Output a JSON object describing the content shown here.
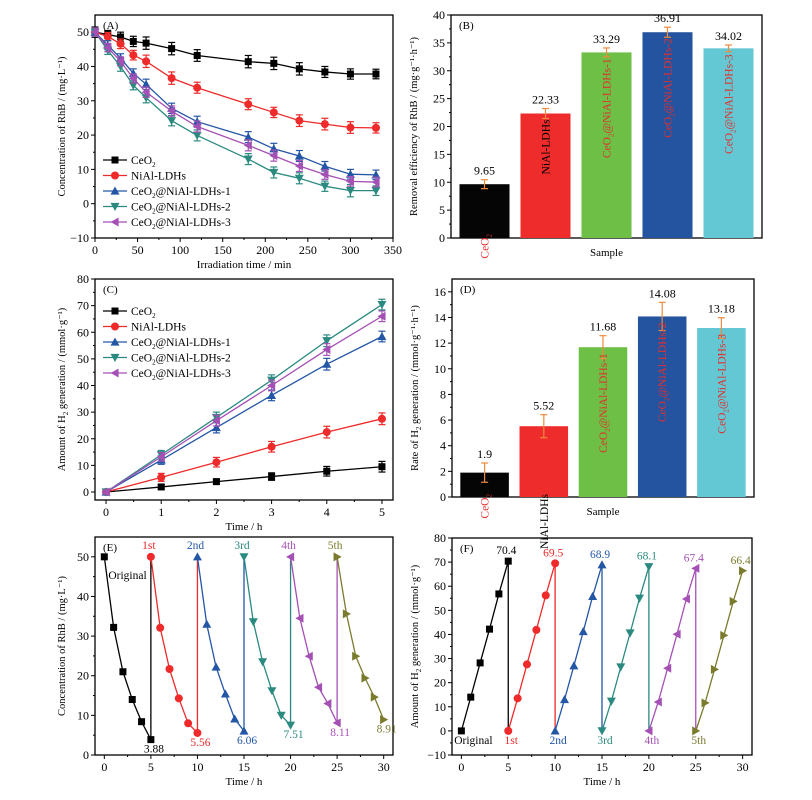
{
  "figure": {
    "panels": [
      "A",
      "B",
      "C",
      "D",
      "E",
      "F"
    ]
  },
  "colors": {
    "black": "#000000",
    "red": "#ee2a2a",
    "blue": "#2456a6",
    "teal": "#2b8a80",
    "purple": "#a550b5",
    "olive": "#7b7b2e",
    "bar_black": "#050505",
    "bar_red": "#ee2c2c",
    "bar_green": "#6dbf45",
    "bar_blue": "#2453a0",
    "bar_cyan": "#63c8d3",
    "error_orange": "#f08a3c",
    "bar_label_red": "#e0312f"
  },
  "chart_data": [
    {
      "id": "A",
      "type": "line",
      "panel_label": "(A)",
      "xlabel": "Irradiation time / min",
      "ylabel": "Concentration of RhB / (mg·L⁻¹)",
      "xlim": [
        0,
        350
      ],
      "ylim": [
        -10,
        55
      ],
      "xticks": [
        0,
        50,
        100,
        150,
        200,
        250,
        300,
        350
      ],
      "yticks": [
        -10,
        0,
        10,
        20,
        30,
        40,
        50
      ],
      "legend_position": "bottom-left",
      "x": [
        0,
        15,
        30,
        45,
        60,
        90,
        120,
        180,
        210,
        240,
        270,
        300,
        330
      ],
      "series": [
        {
          "name": "CeO2",
          "label_main": "CeO",
          "label_sub": "2",
          "label_tail": "",
          "color_key": "black",
          "marker": "square",
          "values": [
            50,
            49.3,
            48.6,
            47.3,
            46.8,
            45.2,
            43.2,
            41.4,
            40.9,
            39.3,
            38.4,
            37.8,
            37.8
          ],
          "error": [
            1.5,
            1.2,
            1.4,
            1.5,
            1.8,
            1.8,
            1.7,
            1.8,
            1.8,
            1.8,
            1.6,
            1.5,
            1.4
          ]
        },
        {
          "name": "NiAl-LDHs",
          "label_main": "NiAl-LDHs",
          "label_sub": "",
          "label_tail": "",
          "color_key": "red",
          "marker": "circle",
          "values": [
            50,
            48.7,
            46.6,
            43.3,
            41.5,
            36.6,
            33.8,
            29.0,
            26.6,
            24.2,
            23.2,
            22.2,
            22.1
          ],
          "error": [
            1.2,
            1.2,
            1.4,
            1.4,
            1.8,
            1.8,
            1.6,
            1.6,
            1.5,
            1.7,
            1.7,
            1.7,
            1.5
          ]
        },
        {
          "name": "CeO2@NiAl-LDHs-1",
          "label_main": "CeO",
          "label_sub": "2",
          "label_tail": "@NiAl-LDHs-1",
          "color_key": "blue",
          "marker": "triangle-up",
          "values": [
            50,
            46.2,
            42.4,
            38.0,
            34.8,
            27.8,
            23.9,
            19.4,
            16.0,
            13.9,
            10.9,
            8.6,
            8.4
          ],
          "error": [
            1.2,
            1.3,
            1.3,
            1.3,
            1.5,
            1.5,
            1.6,
            1.6,
            1.6,
            1.6,
            1.4,
            1.4,
            1.4
          ]
        },
        {
          "name": "CeO2@NiAl-LDHs-2",
          "label_main": "CeO",
          "label_sub": "2",
          "label_tail": "@NiAl-LDHs-2",
          "color_key": "teal",
          "marker": "triangle-down",
          "values": [
            50,
            44.7,
            40.0,
            34.5,
            30.9,
            24.2,
            19.9,
            13.0,
            9.1,
            7.4,
            5.1,
            3.8,
            3.8
          ],
          "error": [
            1.2,
            1.2,
            1.4,
            1.3,
            1.5,
            1.5,
            1.6,
            1.6,
            1.6,
            1.6,
            1.5,
            1.8,
            1.4
          ]
        },
        {
          "name": "CeO2@NiAl-LDHs-3",
          "label_main": "CeO",
          "label_sub": "2",
          "label_tail": "@NiAl-LDHs-3",
          "color_key": "purple",
          "marker": "triangle-left",
          "values": [
            50,
            45.5,
            41.5,
            36.5,
            32.5,
            27.0,
            22.5,
            17.0,
            14.0,
            11.0,
            8.5,
            6.5,
            6.3
          ],
          "error": [
            1.2,
            1.2,
            1.3,
            1.3,
            1.5,
            1.5,
            1.6,
            1.6,
            1.6,
            1.6,
            1.4,
            1.4,
            1.4
          ]
        }
      ]
    },
    {
      "id": "B",
      "type": "bar",
      "panel_label": "(B)",
      "xlabel": "Sample",
      "ylabel": "Removal efficiency of RhB / (mg·g⁻¹·h⁻¹)",
      "ylim": [
        0,
        40
      ],
      "yticks": [
        0,
        5,
        10,
        15,
        20,
        25,
        30,
        35,
        40
      ],
      "categories": [
        "CeO2",
        "NiAl-LDHs",
        "CeO2@NiAl-LDHs-1",
        "CeO2@NiAl-LDHs-2",
        "CeO2@NiAl-LDHs-3"
      ],
      "category_labels": [
        {
          "main": "CeO",
          "sub": "2",
          "tail": "",
          "color_key": "bar_label_red"
        },
        {
          "main": "NiAl-LDHs",
          "sub": "",
          "tail": "",
          "color_key": "black"
        },
        {
          "main": "CeO",
          "sub": "2",
          "tail": "@NiAl-LDHs-1",
          "color_key": "bar_label_red"
        },
        {
          "main": "CeO",
          "sub": "2",
          "tail": "@NiAl-LDHs-2",
          "color_key": "bar_label_red"
        },
        {
          "main": "CeO",
          "sub": "2",
          "tail": "@NiAl-LDHs-3",
          "color_key": "bar_label_red"
        }
      ],
      "values": [
        9.65,
        22.33,
        33.29,
        36.91,
        34.02
      ],
      "value_labels": [
        "9.65",
        "22.33",
        "33.29",
        "36.91",
        "34.02"
      ],
      "error": [
        0.8,
        0.9,
        0.8,
        0.9,
        0.6
      ],
      "bar_color_keys": [
        "bar_black",
        "bar_red",
        "bar_green",
        "bar_blue",
        "bar_cyan"
      ]
    },
    {
      "id": "C",
      "type": "line",
      "panel_label": "(C)",
      "xlabel": "Time / h",
      "ylabel_parts": [
        "Amount of H",
        "2",
        " generation / (mmol·g⁻¹)"
      ],
      "xlim": [
        -0.2,
        5.2
      ],
      "ylim": [
        -3,
        80
      ],
      "xticks": [
        0,
        1,
        2,
        3,
        4,
        5
      ],
      "yticks": [
        0,
        10,
        20,
        30,
        40,
        50,
        60,
        70,
        80
      ],
      "legend_position": "top-left",
      "x": [
        0,
        1,
        2,
        3,
        4,
        5
      ],
      "series": [
        {
          "name": "CeO2",
          "label_main": "CeO",
          "label_sub": "2",
          "label_tail": "",
          "color_key": "black",
          "marker": "square",
          "values": [
            0,
            1.9,
            3.9,
            5.8,
            7.8,
            9.5
          ],
          "error": [
            0.8,
            0.8,
            1.0,
            1.4,
            1.8,
            2.0
          ]
        },
        {
          "name": "NiAl-LDHs",
          "label_main": "NiAl-LDHs",
          "label_sub": "",
          "label_tail": "",
          "color_key": "red",
          "marker": "circle",
          "values": [
            0,
            5.5,
            11.2,
            17.0,
            22.5,
            27.5
          ],
          "error": [
            0.8,
            1.5,
            1.8,
            2.0,
            2.2,
            2.2
          ]
        },
        {
          "name": "CeO2@NiAl-LDHs-1",
          "label_main": "CeO",
          "label_sub": "2",
          "label_tail": "@NiAl-LDHs-1",
          "color_key": "blue",
          "marker": "triangle-up",
          "values": [
            0,
            12.0,
            24.2,
            36.3,
            48.0,
            58.4
          ],
          "error": [
            0.8,
            1.6,
            2.0,
            2.0,
            2.2,
            2.0
          ]
        },
        {
          "name": "CeO2@NiAl-LDHs-2",
          "label_main": "CeO",
          "label_sub": "2",
          "label_tail": "@NiAl-LDHs-2",
          "color_key": "teal",
          "marker": "triangle-down",
          "values": [
            0,
            14.0,
            28.0,
            42.0,
            56.8,
            70.4
          ],
          "error": [
            0.8,
            1.6,
            2.0,
            2.0,
            2.2,
            2.0
          ]
        },
        {
          "name": "CeO2@NiAl-LDHs-3",
          "label_main": "CeO",
          "label_sub": "2",
          "label_tail": "@NiAl-LDHs-3",
          "color_key": "purple",
          "marker": "triangle-left",
          "values": [
            0,
            13.2,
            26.8,
            40.0,
            53.5,
            66.0
          ],
          "error": [
            0.8,
            1.6,
            2.0,
            2.0,
            2.2,
            2.0
          ]
        }
      ]
    },
    {
      "id": "D",
      "type": "bar",
      "panel_label": "(D)",
      "xlabel": "Sample",
      "ylabel_parts": [
        "Rate of H",
        "2",
        " generation / (mmol·g⁻¹·h⁻¹)"
      ],
      "ylim": [
        0,
        17
      ],
      "yticks": [
        0,
        2,
        4,
        6,
        8,
        10,
        12,
        14,
        16
      ],
      "categories": [
        "CeO2",
        "NiAl-LDHs",
        "CeO2@NiAl-LDHs-1",
        "CeO2@NiAl-LDHs-2",
        "CeO2@NiAl-LDHs-3"
      ],
      "category_labels": [
        {
          "main": "CeO",
          "sub": "2",
          "tail": "",
          "color_key": "bar_label_red"
        },
        {
          "main": "NiAl-LDHs",
          "sub": "",
          "tail": "",
          "color_key": "black"
        },
        {
          "main": "CeO",
          "sub": "2",
          "tail": "@NiAl-LDHs-1",
          "color_key": "bar_label_red"
        },
        {
          "main": "CeO",
          "sub": "2",
          "tail": "@NiAl-LDHs-2",
          "color_key": "bar_label_red"
        },
        {
          "main": "CeO",
          "sub": "2",
          "tail": "@NiAl-LDHs-3",
          "color_key": "bar_label_red"
        }
      ],
      "values": [
        1.9,
        5.52,
        11.68,
        14.08,
        13.18
      ],
      "value_labels": [
        "1.9",
        "5.52",
        "11.68",
        "14.08",
        "13.18"
      ],
      "error": [
        0.75,
        0.9,
        0.9,
        1.1,
        0.8
      ],
      "bar_color_keys": [
        "bar_black",
        "bar_red",
        "bar_green",
        "bar_blue",
        "bar_cyan"
      ]
    },
    {
      "id": "E",
      "type": "line",
      "panel_label": "(E)",
      "xlabel": "Time / h",
      "ylabel": "Concentration of RhB / (mg·L⁻¹)",
      "xlim": [
        -1,
        31
      ],
      "ylim": [
        0,
        55
      ],
      "xticks": [
        0,
        5,
        10,
        15,
        20,
        25,
        30
      ],
      "yticks": [
        0,
        10,
        20,
        30,
        40,
        50
      ],
      "cycles": [
        {
          "name": "Original",
          "color_key": "black",
          "marker": "square",
          "x": [
            0,
            1,
            2,
            3,
            4,
            5
          ],
          "values": [
            50,
            32.2,
            21.0,
            14.0,
            8.4,
            3.88
          ],
          "top_label": "Original",
          "end_label": "3.88"
        },
        {
          "name": "1st",
          "color_key": "red",
          "marker": "circle",
          "x": [
            5,
            6,
            7,
            8,
            9,
            10
          ],
          "values": [
            50,
            32.1,
            21.7,
            14.3,
            8.0,
            5.56
          ],
          "top_label": "1st",
          "end_label": "5.56"
        },
        {
          "name": "2nd",
          "color_key": "blue",
          "marker": "triangle-up",
          "x": [
            10,
            11,
            12,
            13,
            14,
            15
          ],
          "values": [
            50,
            33.0,
            22.2,
            15.4,
            9.1,
            6.06
          ],
          "top_label": "2nd",
          "end_label": "6.06"
        },
        {
          "name": "3rd",
          "color_key": "teal",
          "marker": "triangle-down",
          "x": [
            15,
            16,
            17,
            18,
            19,
            20
          ],
          "values": [
            50,
            33.6,
            23.5,
            16.2,
            10.0,
            7.51
          ],
          "top_label": "3rd",
          "end_label": "7.51"
        },
        {
          "name": "4th",
          "color_key": "purple",
          "marker": "triangle-left",
          "x": [
            20,
            21,
            22,
            23,
            24,
            25
          ],
          "values": [
            50,
            34.5,
            24.9,
            17.1,
            13.0,
            8.11
          ],
          "top_label": "4th",
          "end_label": "8.11"
        },
        {
          "name": "5th",
          "color_key": "olive",
          "marker": "triangle-right",
          "x": [
            25,
            26,
            27,
            28,
            29,
            30
          ],
          "values": [
            50,
            35.6,
            24.9,
            19.4,
            14.6,
            8.91
          ],
          "top_label": "5th",
          "end_label": "8.91"
        }
      ]
    },
    {
      "id": "F",
      "type": "line",
      "panel_label": "(F)",
      "xlabel": "Time / h",
      "ylabel_parts": [
        "Amount of H",
        "2",
        " generation / (mmol·g⁻¹)"
      ],
      "xlim": [
        -1,
        31
      ],
      "ylim": [
        -10,
        80
      ],
      "xticks": [
        0,
        5,
        10,
        15,
        20,
        25,
        30
      ],
      "yticks": [
        -10,
        0,
        10,
        20,
        30,
        40,
        50,
        60,
        70,
        80
      ],
      "cycles": [
        {
          "name": "Original",
          "color_key": "black",
          "marker": "square",
          "x": [
            0,
            1,
            2,
            3,
            4,
            5
          ],
          "values": [
            0,
            14.0,
            28.2,
            42.2,
            56.8,
            70.4
          ],
          "bottom_label": "Original",
          "top_label": "70.4"
        },
        {
          "name": "1st",
          "color_key": "red",
          "marker": "circle",
          "x": [
            5,
            6,
            7,
            8,
            9,
            10
          ],
          "values": [
            0,
            13.5,
            27.6,
            41.9,
            56.2,
            69.5
          ],
          "bottom_label": "1st",
          "top_label": "69.5"
        },
        {
          "name": "2nd",
          "color_key": "blue",
          "marker": "triangle-up",
          "x": [
            10,
            11,
            12,
            13,
            14,
            15
          ],
          "values": [
            0,
            13.0,
            27.0,
            41.2,
            55.8,
            68.9
          ],
          "bottom_label": "2nd",
          "top_label": "68.9"
        },
        {
          "name": "3rd",
          "color_key": "teal",
          "marker": "triangle-down",
          "x": [
            15,
            16,
            17,
            18,
            19,
            20
          ],
          "values": [
            0,
            12.3,
            26.5,
            40.6,
            55.0,
            68.1
          ],
          "bottom_label": "3rd",
          "top_label": "68.1"
        },
        {
          "name": "4th",
          "color_key": "purple",
          "marker": "triangle-left",
          "x": [
            20,
            21,
            22,
            23,
            24,
            25
          ],
          "values": [
            0,
            12.0,
            26.0,
            40.1,
            54.7,
            67.4
          ],
          "bottom_label": "4th",
          "top_label": "67.4"
        },
        {
          "name": "5th",
          "color_key": "olive",
          "marker": "triangle-right",
          "x": [
            25,
            26,
            27,
            28,
            29,
            30
          ],
          "values": [
            0,
            11.6,
            25.5,
            39.6,
            53.7,
            66.4
          ],
          "bottom_label": "5th",
          "top_label": "66.4"
        }
      ]
    }
  ]
}
